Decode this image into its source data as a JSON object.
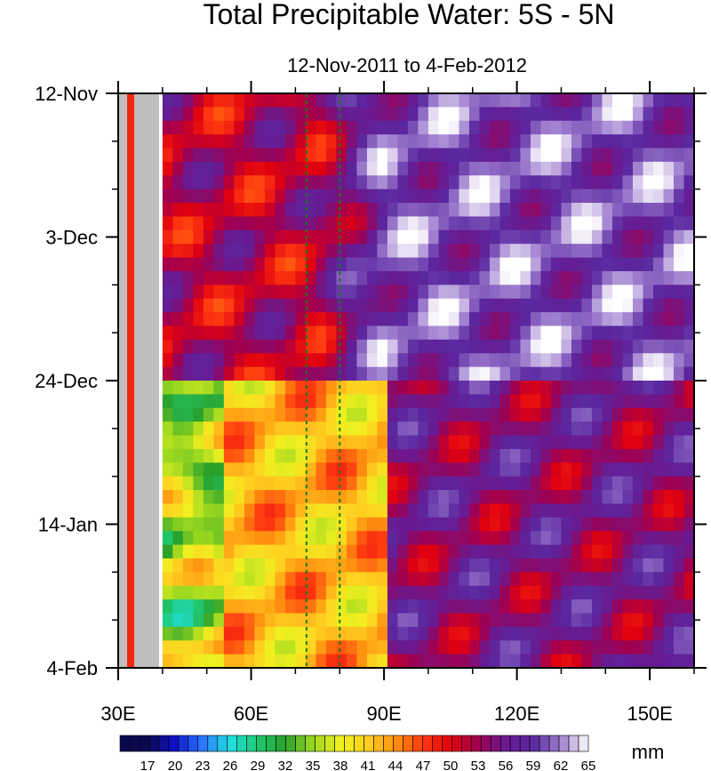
{
  "chart_data": {
    "type": "heatmap",
    "title": "Total Precipitable Water: 5S - 5N",
    "subtitle": "12-Nov-2011 to 4-Feb-2012",
    "xlabel": "",
    "ylabel": "",
    "xlim": [
      30,
      160
    ],
    "x_ticks": [
      30,
      60,
      90,
      120,
      150
    ],
    "x_tick_labels": [
      "30E",
      "60E",
      "90E",
      "120E",
      "150E"
    ],
    "y_range_days": [
      0,
      84
    ],
    "y_ticks_days": [
      0,
      21,
      42,
      63,
      84
    ],
    "y_tick_labels": [
      "12-Nov",
      "3-Dec",
      "24-Dec",
      "14-Jan",
      "4-Feb"
    ],
    "reference_longitudes": [
      72.5,
      80
    ],
    "land_mask_lon": [
      30,
      40
    ],
    "colorbar": {
      "units": "mm",
      "levels": [
        17,
        20,
        23,
        26,
        29,
        32,
        35,
        38,
        41,
        44,
        47,
        50,
        53,
        56,
        59,
        62,
        65
      ],
      "anchor_colors": [
        "#0a0a50",
        "#1010c8",
        "#2a78ff",
        "#20e0e0",
        "#20c870",
        "#2aa02a",
        "#9ad820",
        "#f0f020",
        "#ffd020",
        "#ff9010",
        "#ff3a10",
        "#e00010",
        "#a00050",
        "#6a1a90",
        "#5a28a0",
        "#a080d0",
        "#ffffff"
      ]
    },
    "regimes": [
      {
        "lon_range": [
          40,
          75
        ],
        "day_range": [
          0,
          42
        ],
        "mean_mm": 52
      },
      {
        "lon_range": [
          40,
          90
        ],
        "day_range": [
          42,
          84
        ],
        "mean_mm": 42
      },
      {
        "lon_range": [
          90,
          160
        ],
        "day_range": [
          0,
          42
        ],
        "mean_mm": 60
      },
      {
        "lon_range": [
          90,
          160
        ],
        "day_range": [
          42,
          84
        ],
        "mean_mm": 55
      }
    ]
  }
}
